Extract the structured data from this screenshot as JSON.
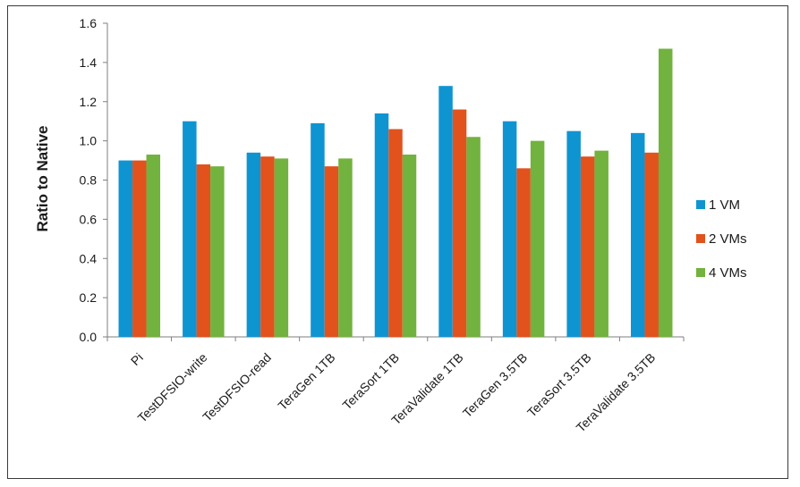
{
  "chart_data": {
    "type": "bar",
    "ylabel": "Ratio to Native",
    "xlabel": "",
    "ylim": [
      0,
      1.6
    ],
    "yticks": [
      "0.0",
      "0.2",
      "0.4",
      "0.6",
      "0.8",
      "1.0",
      "1.2",
      "1.4",
      "1.6"
    ],
    "grid": false,
    "legend_position": "right",
    "categories": [
      "Pi",
      "TestDFSIO-write",
      "TestDFSIO-read",
      "TeraGen 1TB",
      "TeraSort 1TB",
      "TeraValidate 1TB",
      "TeraGen 3.5TB",
      "TeraSort 3.5TB",
      "TeraValidate 3.5TB"
    ],
    "series": [
      {
        "name": "1 VM",
        "color": "#0f94d2",
        "values": [
          0.9,
          1.1,
          0.94,
          1.09,
          1.14,
          1.28,
          1.1,
          1.05,
          1.04
        ]
      },
      {
        "name": "2 VMs",
        "color": "#e2521d",
        "values": [
          0.9,
          0.88,
          0.92,
          0.87,
          1.06,
          1.16,
          0.86,
          0.92,
          0.94
        ]
      },
      {
        "name": "4 VMs",
        "color": "#72b23e",
        "values": [
          0.93,
          0.87,
          0.91,
          0.91,
          0.93,
          1.02,
          1.0,
          0.95,
          1.47
        ]
      }
    ]
  }
}
